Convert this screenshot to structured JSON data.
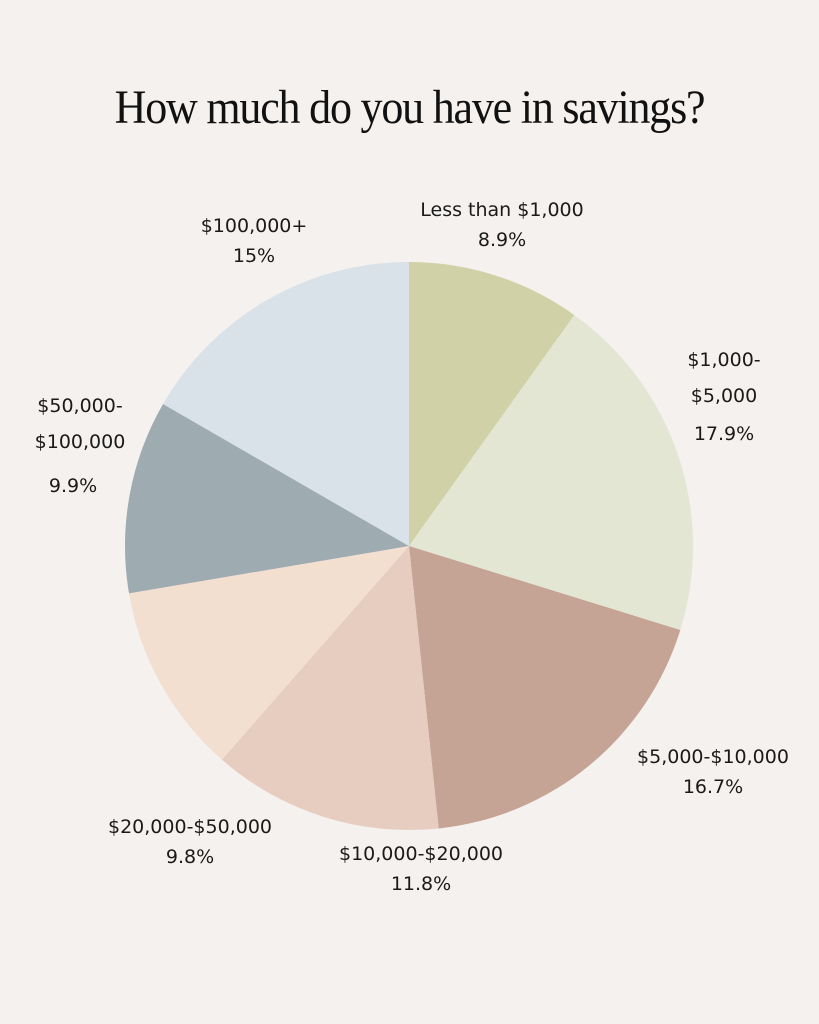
{
  "title": "How much do you have in savings?",
  "background_color": "#f5f1ee",
  "chart_data": {
    "type": "pie",
    "title": "How much do you have in savings?",
    "categories": [
      "Less than $1,000",
      "$1,000-$5,000",
      "$5,000-$10,000",
      "$10,000-$20,000",
      "$20,000-$50,000",
      "$50,000-$100,000",
      "$100,000+"
    ],
    "values": [
      8.9,
      17.9,
      16.7,
      11.8,
      9.8,
      9.9,
      15
    ],
    "value_labels": [
      "8.9%",
      "17.9%",
      "16.7%",
      "11.8%",
      "9.8%",
      "9.9%",
      "15%"
    ],
    "colors": [
      "#d0d1a6",
      "#e3e6d3",
      "#c6a495",
      "#e6cdc0",
      "#f3dfcf",
      "#9eabb1",
      "#d9e2e8"
    ],
    "start_angle": "12 o'clock, clockwise",
    "legend": "none (direct labels)"
  },
  "labels": [
    {
      "lines": [
        "Less than $1,000"
      ],
      "value": "8.9%"
    },
    {
      "lines": [
        "$1,000-",
        "$5,000"
      ],
      "value": "17.9%"
    },
    {
      "lines": [
        "$5,000-$10,000"
      ],
      "value": "16.7%"
    },
    {
      "lines": [
        "$10,000-$20,000"
      ],
      "value": "11.8%"
    },
    {
      "lines": [
        "$20,000-$50,000"
      ],
      "value": "9.8%"
    },
    {
      "lines": [
        "$50,000-",
        "$100,000"
      ],
      "value": "9.9%"
    },
    {
      "lines": [
        "$100,000+"
      ],
      "value": "15%"
    }
  ]
}
